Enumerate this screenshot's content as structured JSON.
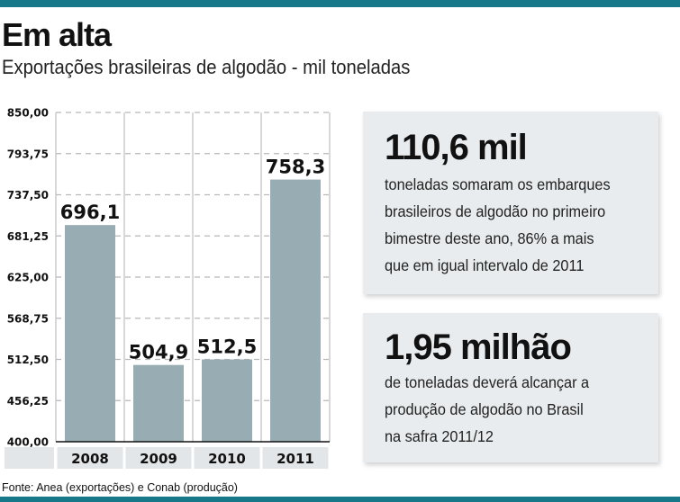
{
  "chart_data": {
    "type": "bar",
    "title": "Em alta",
    "subtitle": "Exportações brasileiras de algodão - mil toneladas",
    "categories": [
      "2008",
      "2009",
      "2010",
      "2011"
    ],
    "values": [
      696.1,
      504.9,
      512.5,
      758.3
    ],
    "data_labels": [
      "696,1",
      "504,9",
      "512,5",
      "758,3"
    ],
    "ylim": [
      400,
      850
    ],
    "yticks": [
      400,
      456.25,
      512.5,
      568.75,
      625,
      681.25,
      737.5,
      793.75,
      850
    ],
    "ytick_labels": [
      "400,00",
      "456,25",
      "512,50",
      "568,75",
      "625,00",
      "681,25",
      "737,50",
      "793,75",
      "850,00"
    ],
    "xlabel": "",
    "ylabel": "",
    "grid": true,
    "bar_color": "#97acb3",
    "source": "Fonte: Anea (exportações) e Conab (produção)"
  },
  "cards": [
    {
      "big": "110,6 mil",
      "text": "toneladas somaram os embarques\nbrasileiros de algodão no primeiro\nbimestre deste ano, 86% a mais\nque em igual intervalo de 2011"
    },
    {
      "big": "1,95 milhão",
      "text": "de toneladas deverá alcançar a\nprodução de algodão no Brasil\nna safra 2011/12"
    }
  ],
  "colors": {
    "accent": "#17788a",
    "card_bg": "#e9ecee"
  }
}
